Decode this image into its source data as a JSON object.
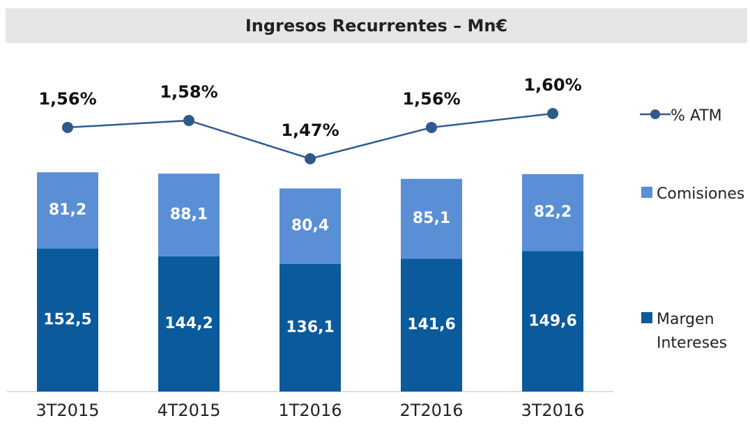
{
  "chart_data": {
    "type": "bar",
    "title": "Ingresos Recurrentes – Mn€",
    "categories": [
      "3T2015",
      "4T2015",
      "1T2016",
      "2T2016",
      "3T2016"
    ],
    "stacked": true,
    "ylim": [
      0,
      300
    ],
    "y2lim": [
      0.8,
      1.61
    ],
    "series": [
      {
        "name": "Margen Intereses",
        "type": "bar",
        "color": "#0a5a9c",
        "values": [
          152.5,
          144.2,
          136.1,
          141.6,
          149.6
        ],
        "value_labels": [
          "152,5",
          "144,2",
          "136,1",
          "141,6",
          "149,6"
        ]
      },
      {
        "name": "Comisiones",
        "type": "bar",
        "color": "#5a8fd6",
        "values": [
          81.2,
          88.1,
          80.4,
          85.1,
          82.2
        ],
        "value_labels": [
          "81,2",
          "88,1",
          "80,4",
          "85,1",
          "82,2"
        ]
      },
      {
        "name": "% ATM",
        "type": "line",
        "axis": "y2",
        "color": "#2e5a8c",
        "values": [
          1.56,
          1.58,
          1.47,
          1.56,
          1.6
        ],
        "value_labels": [
          "1,56%",
          "1,58%",
          "1,47%",
          "1,56%",
          "1,60%"
        ]
      }
    ]
  }
}
